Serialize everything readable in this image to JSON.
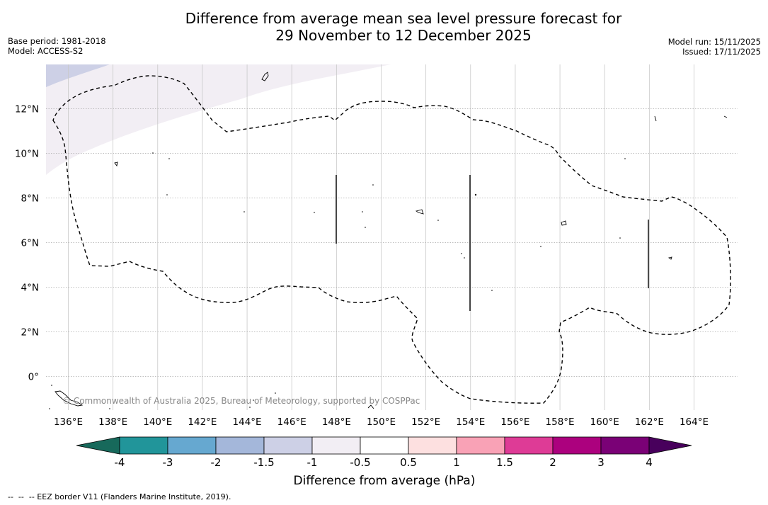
{
  "title": {
    "line1": "Difference from average mean sea level pressure forecast for",
    "line2": "29 November to 12 December 2025"
  },
  "meta_left": {
    "base_period": "Base period: 1981-2018",
    "model": "Model: ACCESS-S2"
  },
  "meta_right": {
    "model_run": "Model run: 15/11/2025",
    "issued": "Issued: 17/11/2025"
  },
  "map": {
    "lon_range": [
      135,
      166
    ],
    "lat_range": [
      -1.5,
      14
    ],
    "lon_ticks": [
      136,
      138,
      140,
      142,
      144,
      146,
      148,
      150,
      152,
      154,
      156,
      158,
      160,
      162,
      164
    ],
    "lon_tick_labels": [
      "136°E",
      "138°E",
      "140°E",
      "142°E",
      "144°E",
      "146°E",
      "148°E",
      "150°E",
      "152°E",
      "154°E",
      "156°E",
      "158°E",
      "160°E",
      "162°E",
      "164°E"
    ],
    "lat_ticks": [
      0,
      2,
      4,
      6,
      8,
      10,
      12
    ],
    "lat_tick_labels": [
      "0°",
      "2°N",
      "4°N",
      "6°N",
      "8°N",
      "10°N",
      "12°N"
    ],
    "copyright": "© Commonwealth of Australia 2025, Bureau of Meteorology, supported by COSPPac"
  },
  "colorbar": {
    "title": "Difference from average (hPa)",
    "labels": [
      "-4",
      "-3",
      "-2",
      "-1.5",
      "-1",
      "-0.5",
      "0.5",
      "1",
      "1.5",
      "2",
      "3",
      "4"
    ],
    "colors": [
      "#17695b",
      "#21959a",
      "#66a8d0",
      "#a4b7da",
      "#cdd0e6",
      "#f2eef4",
      "#ffffff",
      "#fde0e0",
      "#f9a2b6",
      "#de3b96",
      "#ac017e",
      "#7a0176",
      "#48005c"
    ]
  },
  "footer": "--  --  -- EEZ border V11 (Flanders Marine Institute, 2019)."
}
